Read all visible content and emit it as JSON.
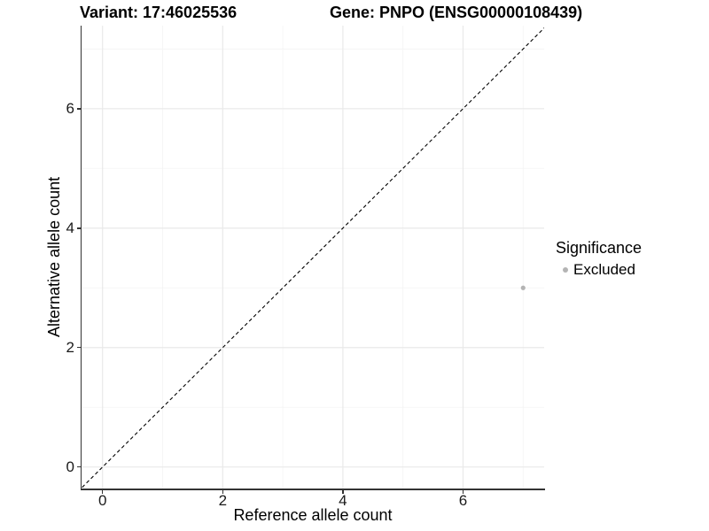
{
  "chart_data": {
    "type": "scatter",
    "titles": [
      "Variant: 17:46025536",
      "Gene: PNPO (ENSG00000108439)"
    ],
    "xlabel": "Reference allele count",
    "ylabel": "Alternative allele count",
    "xlim": [
      -0.35,
      7.35
    ],
    "ylim": [
      -0.36,
      7.39
    ],
    "x_ticks": [
      0,
      2,
      4,
      6
    ],
    "y_ticks": [
      0,
      2,
      4,
      6
    ],
    "x_minor_gridlines": [
      1,
      3,
      5,
      7
    ],
    "y_minor_gridlines": [
      1,
      3,
      5,
      7
    ],
    "grid": "major and minor gridlines on, white panel background",
    "identity_line": {
      "equation": "y = x",
      "style": "dashed",
      "color": "#000000"
    },
    "series": [
      {
        "name": "Excluded",
        "color": "#b4b4b4",
        "points": [
          {
            "x": 7,
            "y": 3
          }
        ]
      }
    ],
    "legend": {
      "title": "Significance",
      "position": "right",
      "entries": [
        {
          "label": "Excluded",
          "color": "#b4b4b4",
          "marker": "circle"
        }
      ]
    }
  },
  "style": {
    "background": "#ffffff",
    "text_color": "#000000",
    "axis_line_color": "#333333",
    "tick_color": "#333333",
    "grid_major_color": "#e9e9e9",
    "grid_minor_color": "#f4f4f4"
  }
}
